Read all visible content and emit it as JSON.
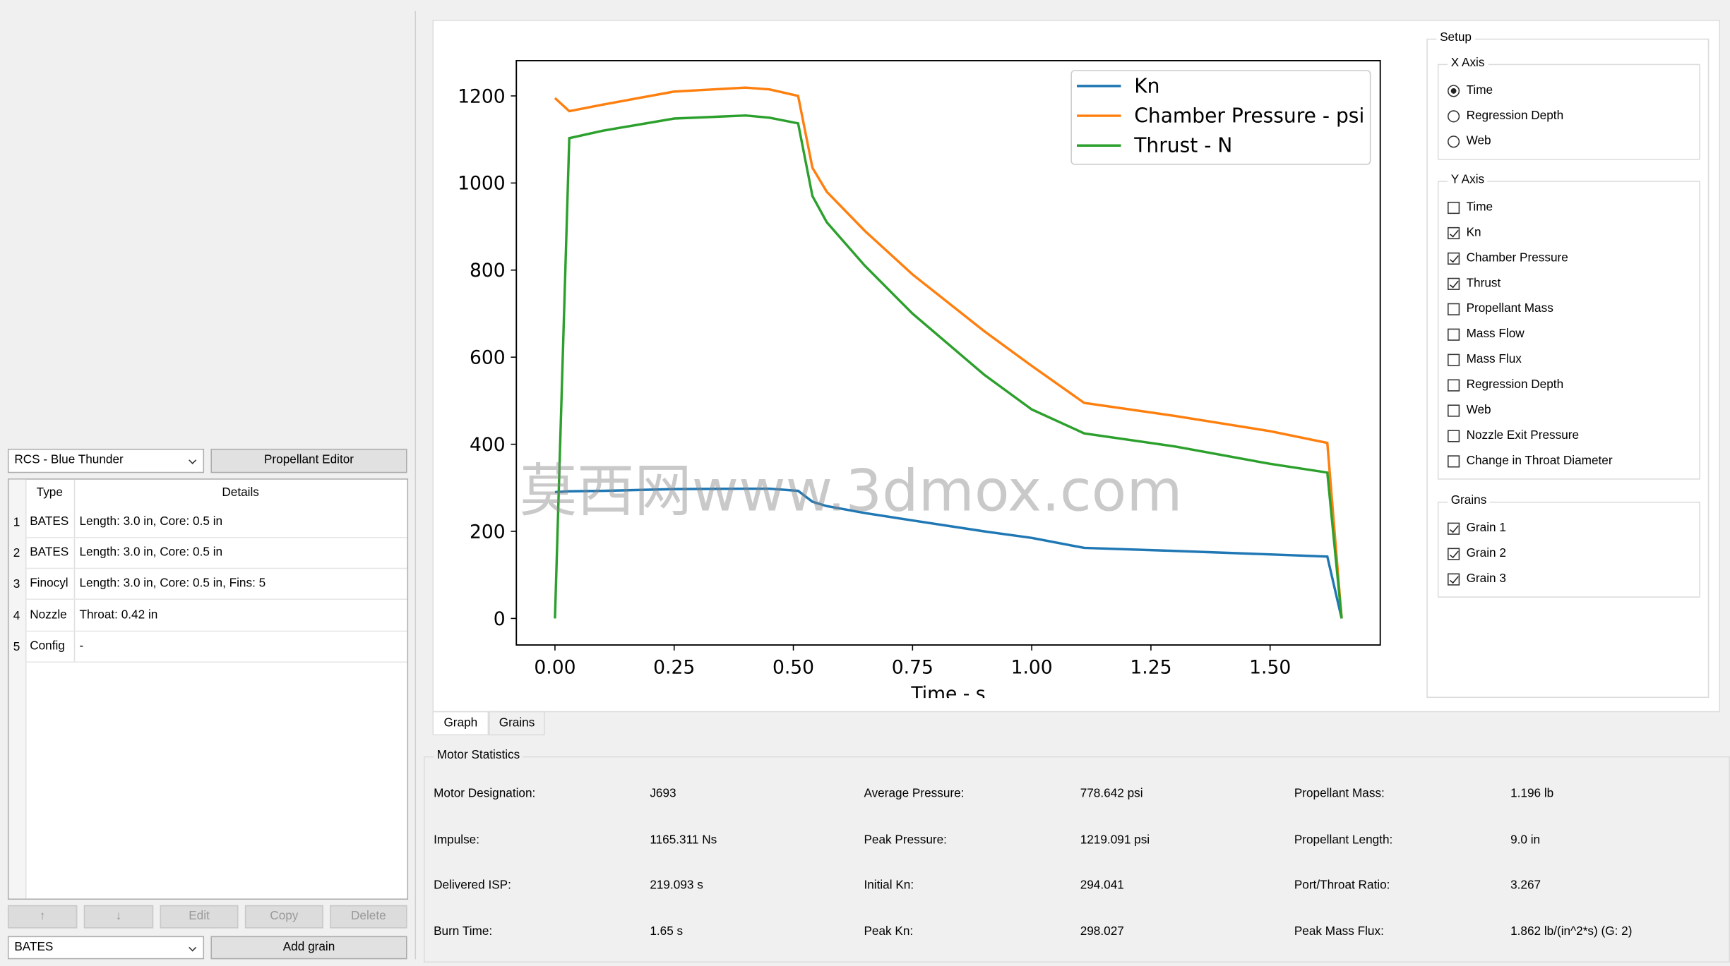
{
  "chart_data": {
    "type": "line",
    "xlabel": "Time - s",
    "legend": "upper right",
    "x": [
      0,
      0.03,
      0.1,
      0.25,
      0.4,
      0.45,
      0.51,
      0.54,
      0.57,
      0.65,
      0.75,
      0.9,
      1.0,
      1.11,
      1.3,
      1.5,
      1.62,
      1.65
    ],
    "series": [
      {
        "name": "Kn",
        "color": "#1f77b4",
        "values": [
          290,
          292,
          293,
          297,
          298,
          298,
          293,
          268,
          258,
          242,
          225,
          200,
          185,
          162,
          155,
          147,
          142,
          0
        ]
      },
      {
        "name": "Chamber Pressure - psi",
        "color": "#ff7f0e",
        "values": [
          1195,
          1165,
          1180,
          1210,
          1219,
          1215,
          1200,
          1035,
          980,
          890,
          790,
          660,
          580,
          495,
          465,
          430,
          403,
          0
        ]
      },
      {
        "name": "Thrust - N",
        "color": "#2ca02c",
        "values": [
          0,
          1103,
          1120,
          1148,
          1155,
          1150,
          1137,
          970,
          910,
          810,
          700,
          560,
          480,
          425,
          395,
          355,
          335,
          0
        ]
      }
    ],
    "xlim": [
      -0.081,
      1.731
    ],
    "ylim": [
      -61,
      1281
    ],
    "xticks": [
      {
        "value": 0,
        "label": "0.00"
      },
      {
        "value": 0.25,
        "label": "0.25"
      },
      {
        "value": 0.5,
        "label": "0.50"
      },
      {
        "value": 0.75,
        "label": "0.75"
      },
      {
        "value": 1,
        "label": "1.00"
      },
      {
        "value": 1.25,
        "label": "1.25"
      },
      {
        "value": 1.5,
        "label": "1.50"
      }
    ],
    "yticks": [
      0,
      200,
      400,
      600,
      800,
      1000,
      1200
    ],
    "grid": false,
    "watermark": "莫西网www.3dmox.com"
  },
  "left_panel": {
    "propellant": "RCS - Blue Thunder",
    "propellant_editor": "Propellant Editor",
    "table": {
      "headers": [
        "Type",
        "Details"
      ],
      "rows": [
        [
          "1",
          "BATES",
          "Length: 3.0 in, Core: 0.5 in"
        ],
        [
          "2",
          "BATES",
          "Length: 3.0 in, Core: 0.5 in"
        ],
        [
          "3",
          "Finocyl",
          "Length: 3.0 in, Core: 0.5 in, Fins: 5"
        ],
        [
          "4",
          "Nozzle",
          "Throat: 0.42 in"
        ],
        [
          "5",
          "Config",
          "-"
        ]
      ]
    },
    "buttons": [
      "↑",
      "↓",
      "Edit",
      "Copy",
      "Delete"
    ],
    "grain_type": "BATES",
    "add_grain": "Add grain"
  },
  "tabs": [
    "Graph",
    "Grains"
  ],
  "setup": {
    "title": "Setup",
    "groups": [
      {
        "title": "X Axis",
        "radio": true,
        "options": [
          {
            "label": "Time",
            "checked": true
          },
          {
            "label": "Regression Depth",
            "checked": false
          },
          {
            "label": "Web",
            "checked": false
          }
        ]
      },
      {
        "title": "Y Axis",
        "radio": false,
        "options": [
          {
            "label": "Time",
            "checked": false
          },
          {
            "label": "Kn",
            "checked": true
          },
          {
            "label": "Chamber Pressure",
            "checked": true
          },
          {
            "label": "Thrust",
            "checked": true
          },
          {
            "label": "Propellant Mass",
            "checked": false
          },
          {
            "label": "Mass Flow",
            "checked": false
          },
          {
            "label": "Mass Flux",
            "checked": false
          },
          {
            "label": "Regression Depth",
            "checked": false
          },
          {
            "label": "Web",
            "checked": false
          },
          {
            "label": "Nozzle Exit Pressure",
            "checked": false
          },
          {
            "label": "Change in Throat Diameter",
            "checked": false
          }
        ]
      },
      {
        "title": "Grains",
        "radio": false,
        "options": [
          {
            "label": "Grain 1",
            "checked": true
          },
          {
            "label": "Grain 2",
            "checked": true
          },
          {
            "label": "Grain 3",
            "checked": true
          }
        ]
      }
    ]
  },
  "motor_statistics": {
    "title": "Motor Statistics",
    "items": [
      [
        "Motor Designation:",
        "J693"
      ],
      [
        "Average Pressure:",
        "778.642 psi"
      ],
      [
        "Propellant Mass:",
        "1.196 lb"
      ],
      [
        "Impulse:",
        "1165.311 Ns"
      ],
      [
        "Peak Pressure:",
        "1219.091 psi"
      ],
      [
        "Propellant Length:",
        "9.0 in"
      ],
      [
        "Delivered ISP:",
        "219.093 s"
      ],
      [
        "Initial Kn:",
        "294.041"
      ],
      [
        "Port/Throat Ratio:",
        "3.267"
      ],
      [
        "Burn Time:",
        "1.65 s"
      ],
      [
        "Peak Kn:",
        "298.027"
      ],
      [
        "Peak Mass Flux:",
        "1.862 lb/(in^2*s) (G: 2)"
      ]
    ]
  }
}
